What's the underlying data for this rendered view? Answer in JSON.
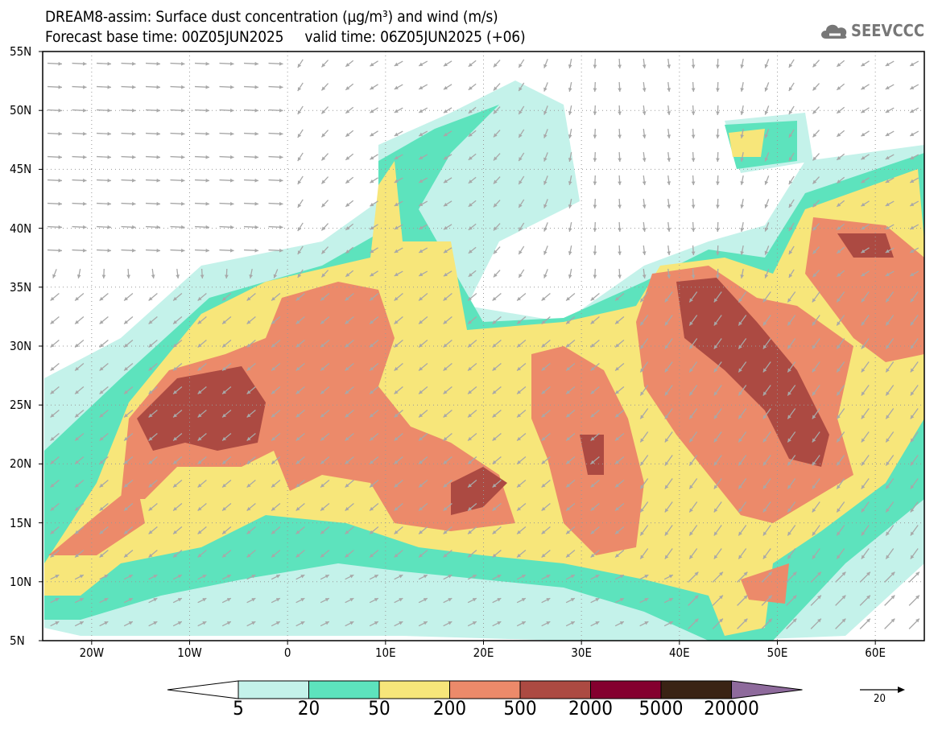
{
  "title_line1": "DREAM8-assim: Surface dust concentration (µg/m³) and wind (m/s)",
  "title_line2": "Forecast base time: 00Z05JUN2025     valid time: 06Z05JUN2025 (+06)",
  "logo_text": "SEEVCCC",
  "lat_labels": [
    "55N",
    "50N",
    "45N",
    "40N",
    "35N",
    "30N",
    "25N",
    "20N",
    "15N",
    "10N",
    "5N"
  ],
  "lat_values": [
    55,
    50,
    45,
    40,
    35,
    30,
    25,
    20,
    15,
    10,
    5
  ],
  "lon_labels": [
    "20W",
    "10W",
    "0",
    "10E",
    "20E",
    "30E",
    "40E",
    "50E",
    "60E"
  ],
  "lon_values": [
    -20,
    -10,
    0,
    10,
    20,
    30,
    40,
    50,
    60
  ],
  "colorbar": {
    "labels": [
      "5",
      "20",
      "50",
      "200",
      "500",
      "2000",
      "5000",
      "20000"
    ],
    "colors": [
      "#c4f2ea",
      "#5de3bd",
      "#f7e67a",
      "#ec8a6a",
      "#ac4a42",
      "#84002f",
      "#3a2314",
      "#8e6a9c"
    ],
    "under_color": "#ffffff"
  },
  "wind_reference": "20",
  "wind_arrow_color": "#a8a8a8"
}
